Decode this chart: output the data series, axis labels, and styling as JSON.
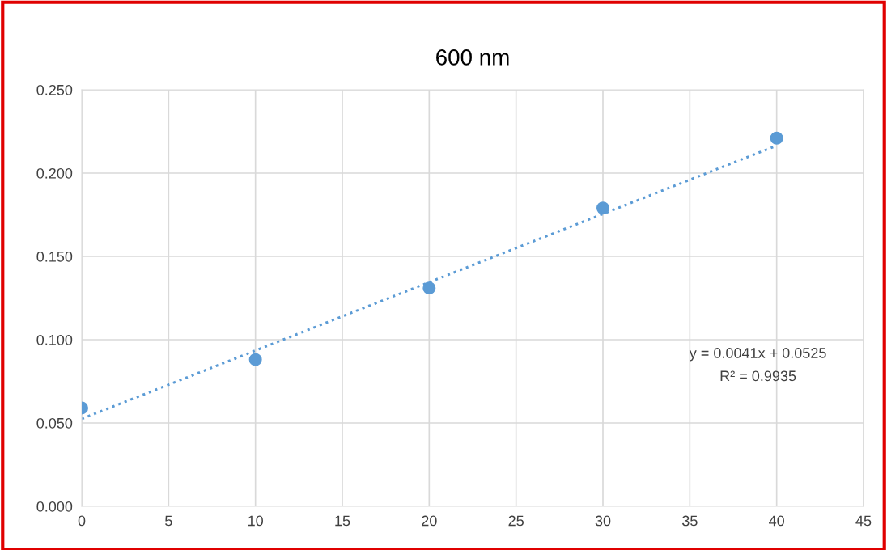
{
  "chart_data": {
    "type": "scatter",
    "title": "600 nm",
    "x": [
      0,
      10,
      20,
      30,
      40
    ],
    "series": [
      {
        "color": "#5b9bd5",
        "marker": "circle",
        "values": [
          0.059,
          0.088,
          0.131,
          0.179,
          0.221
        ]
      },
      {
        "type": "line",
        "color": "#5b9bd5",
        "line_style": "dotted",
        "x": [
          0,
          40
        ],
        "values": [
          0.0525,
          0.2165
        ]
      }
    ],
    "xlim": [
      0,
      45
    ],
    "xticks": [
      0,
      5,
      10,
      15,
      20,
      25,
      30,
      35,
      40,
      45
    ],
    "ylim": [
      0,
      0.25
    ],
    "yticks": [
      {
        "value": 0,
        "label": "0.000"
      },
      {
        "value": 0.05,
        "label": "0.050"
      },
      {
        "value": 0.1,
        "label": "0.100"
      },
      {
        "value": 0.15,
        "label": "0.150"
      },
      {
        "value": 0.2,
        "label": "0.200"
      },
      {
        "value": 0.25,
        "label": "0.250"
      }
    ],
    "grid": true,
    "annotations": [
      "y = 0.0041x + 0.0525",
      "R² = 0.9935"
    ]
  }
}
